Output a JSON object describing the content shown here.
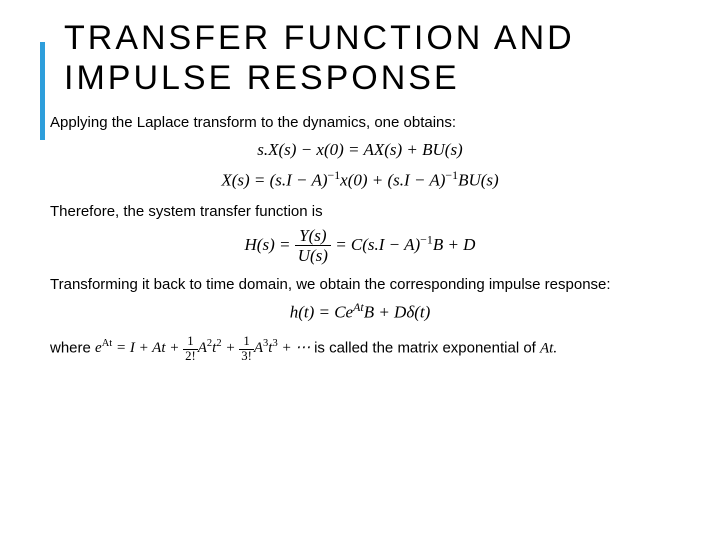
{
  "title": "TRANSFER FUNCTION AND IMPULSE RESPONSE",
  "para1": "Applying the Laplace transform to the dynamics, one obtains:",
  "eq1": "s.X(s) − x(0) = AX(s) + BU(s)",
  "eq2_lhs": "X(s) = (s.I − A)",
  "eq2_mid": "x(0) + (s.I − A)",
  "eq2_rhs": "BU(s)",
  "para2": "Therefore, the system transfer function is",
  "eq3_lhs": "H(s) =",
  "eq3_num": "Y(s)",
  "eq3_den": "U(s)",
  "eq3_rhs_a": "= C(s.I − A)",
  "eq3_rhs_b": "B + D",
  "para3": "Transforming it back to time domain, we obtain the corresponding impulse response:",
  "eq4_a": "h(t) = Ce",
  "eq4_b": "B + Dδ(t)",
  "para4_a": "where ",
  "para4_b": " is called the matrix exponential of ",
  "exp_lhs": "e",
  "exp_sup": "At",
  "exp_rhs_a": " = I + At + ",
  "exp_mid1": "A",
  "exp_t2": "t",
  "exp_plus": " + ",
  "exp_mid2": "A",
  "exp_t3": "t",
  "exp_dots": " + ⋯",
  "para4_c": "At",
  "accent_color": "#2e9edb",
  "font_title_size": 34,
  "font_body_size": 15,
  "font_eq_size": 17
}
